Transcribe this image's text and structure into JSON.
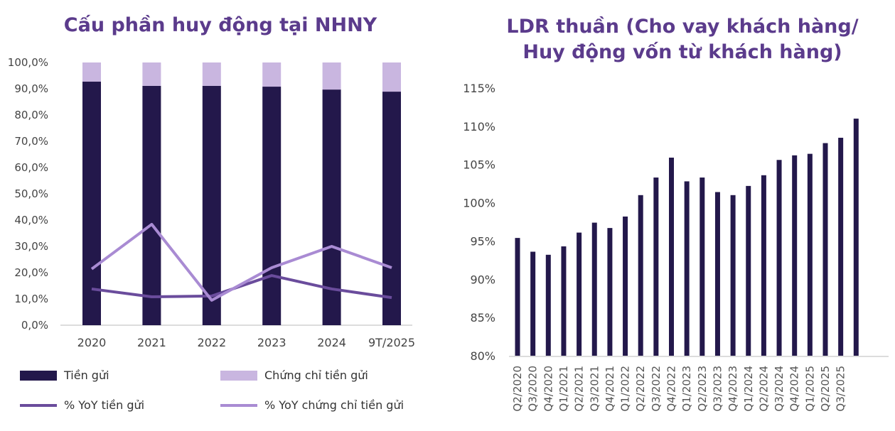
{
  "chart_data": [
    {
      "type": "bar",
      "stacked": true,
      "title": "Cấu phần huy động tại NHNY",
      "categories": [
        "2020",
        "2021",
        "2022",
        "2023",
        "2024",
        "9T/2025"
      ],
      "ylim": [
        0,
        100
      ],
      "yticks": [
        "0,0%",
        "10,0%",
        "20,0%",
        "30,0%",
        "40,0%",
        "50,0%",
        "60,0%",
        "70,0%",
        "80,0%",
        "90,0%",
        "100,0%"
      ],
      "series": [
        {
          "name": "Tiền gửi",
          "kind": "bar",
          "color": "#23184b",
          "values": [
            92.7,
            91.1,
            91.1,
            90.8,
            89.7,
            88.9
          ]
        },
        {
          "name": "Chứng chỉ tiền gửi",
          "kind": "bar",
          "color": "#c9b6e0",
          "values": [
            7.3,
            8.9,
            8.9,
            9.2,
            10.3,
            11.1
          ]
        },
        {
          "name": "% YoY tiền gửi",
          "kind": "line",
          "color": "#6a4c9c",
          "values": [
            13.8,
            10.8,
            11.1,
            18.9,
            13.8,
            10.5
          ]
        },
        {
          "name": "% YoY chứng chỉ tiền gửi",
          "kind": "line",
          "color": "#a98bd3",
          "values": [
            21.4,
            38.4,
            9.5,
            21.9,
            30.0,
            21.9
          ]
        }
      ],
      "legend": "bottom",
      "grid": false
    },
    {
      "type": "bar",
      "title": "LDR thuần (Cho vay khách hàng/ Huy động vốn từ khách hàng)",
      "title_lines": [
        "LDR thuần (Cho vay khách hàng/",
        "Huy động vốn từ khách hàng)"
      ],
      "categories": [
        "Q2/2020",
        "Q3/2020",
        "Q4/2020",
        "Q1/2021",
        "Q2/2021",
        "Q3/2021",
        "Q4/2021",
        "Q1/2022",
        "Q2/2022",
        "Q3/2022",
        "Q4/2022",
        "Q1/2023",
        "Q2/2023",
        "Q3/2023",
        "Q4/2023",
        "Q1/2024",
        "Q2/2024",
        "Q3/2024",
        "Q4/2024",
        "Q1/2025",
        "Q2/2025",
        "Q3/2025",
        ""
      ],
      "values": [
        95.4,
        93.6,
        93.2,
        94.3,
        96.1,
        97.4,
        96.7,
        98.2,
        101.0,
        103.3,
        105.9,
        102.8,
        103.3,
        101.4,
        101.0,
        102.2,
        103.6,
        105.6,
        106.2,
        106.4,
        107.8,
        108.5,
        111.0
      ],
      "color": "#23184b",
      "ylim": [
        80,
        115
      ],
      "yticks": [
        "80%",
        "85%",
        "90%",
        "95%",
        "100%",
        "105%",
        "110%",
        "115%"
      ],
      "grid": false
    }
  ]
}
